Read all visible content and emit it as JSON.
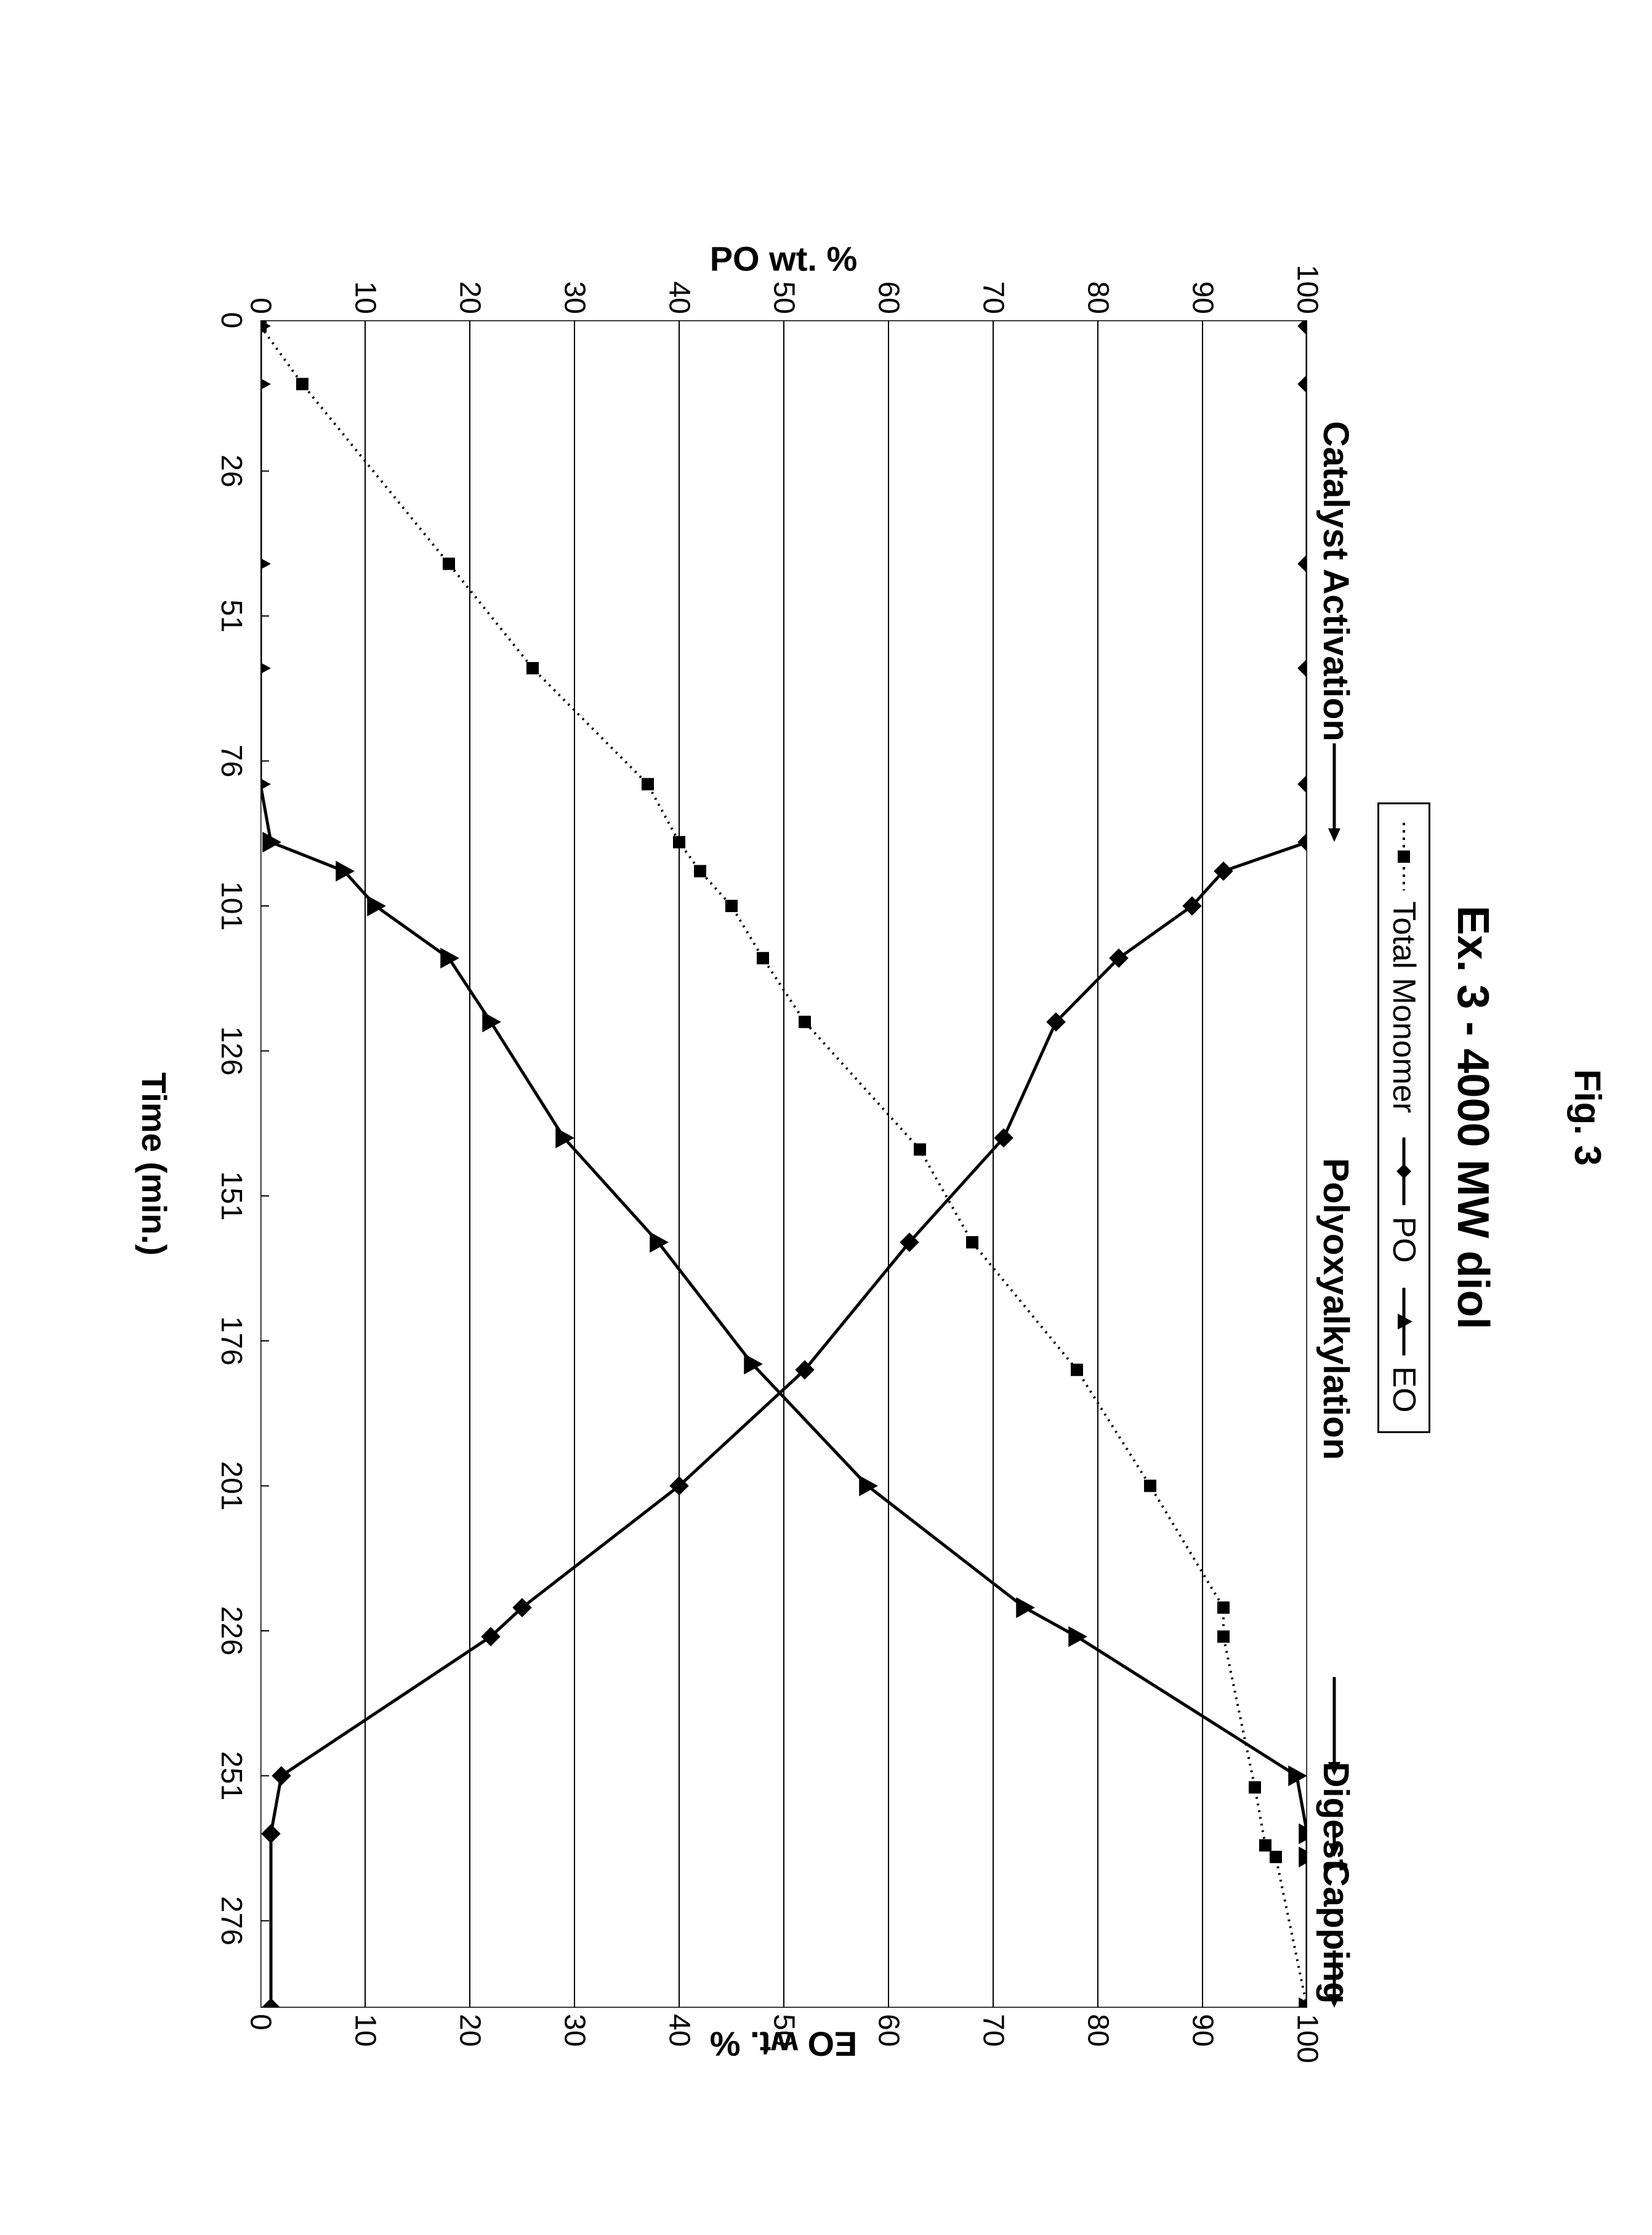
{
  "figure_caption": "Fig. 3",
  "chart": {
    "type": "line",
    "title": "Ex. 3 - 4000 MW diol",
    "title_fontsize": 72,
    "background_color": "#ffffff",
    "grid_color": "#000000",
    "axis_line_width": 3,
    "grid_line_width": 2,
    "phases": [
      {
        "label": "Catalyst Activation",
        "end_x": 90
      },
      {
        "label": "Polyoxyalkylation",
        "end_x": 251
      },
      {
        "label": "Digest",
        "end_x": 265
      },
      {
        "label": "Capping",
        "end_x": 291
      }
    ],
    "x": {
      "label": "Time (min.)",
      "min": 0,
      "max": 291,
      "ticks": [
        0,
        26,
        51,
        76,
        101,
        126,
        151,
        176,
        201,
        226,
        251,
        276
      ],
      "label_fontsize": 56,
      "tick_fontsize": 48
    },
    "y_left": {
      "label": "PO wt. %",
      "min": 0,
      "max": 100,
      "ticks": [
        0,
        10,
        20,
        30,
        40,
        50,
        60,
        70,
        80,
        90,
        100
      ],
      "label_fontsize": 56,
      "tick_fontsize": 48
    },
    "y_right": {
      "label": "EO wt. %",
      "min": 0,
      "max": 100,
      "ticks": [
        0,
        10,
        20,
        30,
        40,
        50,
        60,
        70,
        80,
        90,
        100
      ],
      "label_fontsize": 56,
      "tick_fontsize": 48
    },
    "legend": {
      "position": "top-center",
      "border_color": "#000000",
      "border_width": 3,
      "fontsize": 52,
      "items": [
        {
          "series": "total_monomer",
          "label": "Total Monomer"
        },
        {
          "series": "po",
          "label": "PO"
        },
        {
          "series": "eo",
          "label": "EO"
        }
      ]
    },
    "series": {
      "total_monomer": {
        "axis": "y_left",
        "marker": "square",
        "marker_size": 20,
        "color": "#000000",
        "line_dash": "3,8",
        "line_width": 4,
        "points": [
          [
            1,
            0
          ],
          [
            11,
            4
          ],
          [
            42,
            18
          ],
          [
            60,
            26
          ],
          [
            80,
            37
          ],
          [
            90,
            40
          ],
          [
            95,
            42
          ],
          [
            101,
            45
          ],
          [
            110,
            48
          ],
          [
            121,
            52
          ],
          [
            143,
            63
          ],
          [
            159,
            68
          ],
          [
            181,
            78
          ],
          [
            201,
            85
          ],
          [
            222,
            92
          ],
          [
            227,
            92
          ],
          [
            253,
            95
          ],
          [
            263,
            96
          ],
          [
            265,
            97
          ],
          [
            291,
            100
          ]
        ]
      },
      "po": {
        "axis": "y_left",
        "marker": "diamond",
        "marker_size": 22,
        "color": "#000000",
        "line_dash": "none",
        "line_width": 5,
        "points": [
          [
            1,
            100
          ],
          [
            11,
            100
          ],
          [
            42,
            100
          ],
          [
            60,
            100
          ],
          [
            80,
            100
          ],
          [
            90,
            100
          ],
          [
            95,
            92
          ],
          [
            101,
            89
          ],
          [
            110,
            82
          ],
          [
            121,
            76
          ],
          [
            141,
            71
          ],
          [
            159,
            62
          ],
          [
            181,
            52
          ],
          [
            201,
            40
          ],
          [
            222,
            25
          ],
          [
            227,
            22
          ],
          [
            251,
            2
          ],
          [
            261,
            1
          ],
          [
            291,
            1
          ]
        ]
      },
      "eo": {
        "axis": "y_right",
        "marker": "triangle",
        "marker_size": 22,
        "color": "#000000",
        "line_dash": "none",
        "line_width": 5,
        "points": [
          [
            1,
            0
          ],
          [
            11,
            0
          ],
          [
            42,
            0
          ],
          [
            60,
            0
          ],
          [
            80,
            0
          ],
          [
            90,
            1
          ],
          [
            95,
            8
          ],
          [
            101,
            11
          ],
          [
            110,
            18
          ],
          [
            121,
            22
          ],
          [
            141,
            29
          ],
          [
            159,
            38
          ],
          [
            180,
            47
          ],
          [
            201,
            58
          ],
          [
            222,
            73
          ],
          [
            227,
            78
          ],
          [
            251,
            99
          ],
          [
            261,
            100
          ],
          [
            265,
            100
          ],
          [
            291,
            100
          ]
        ]
      }
    }
  }
}
